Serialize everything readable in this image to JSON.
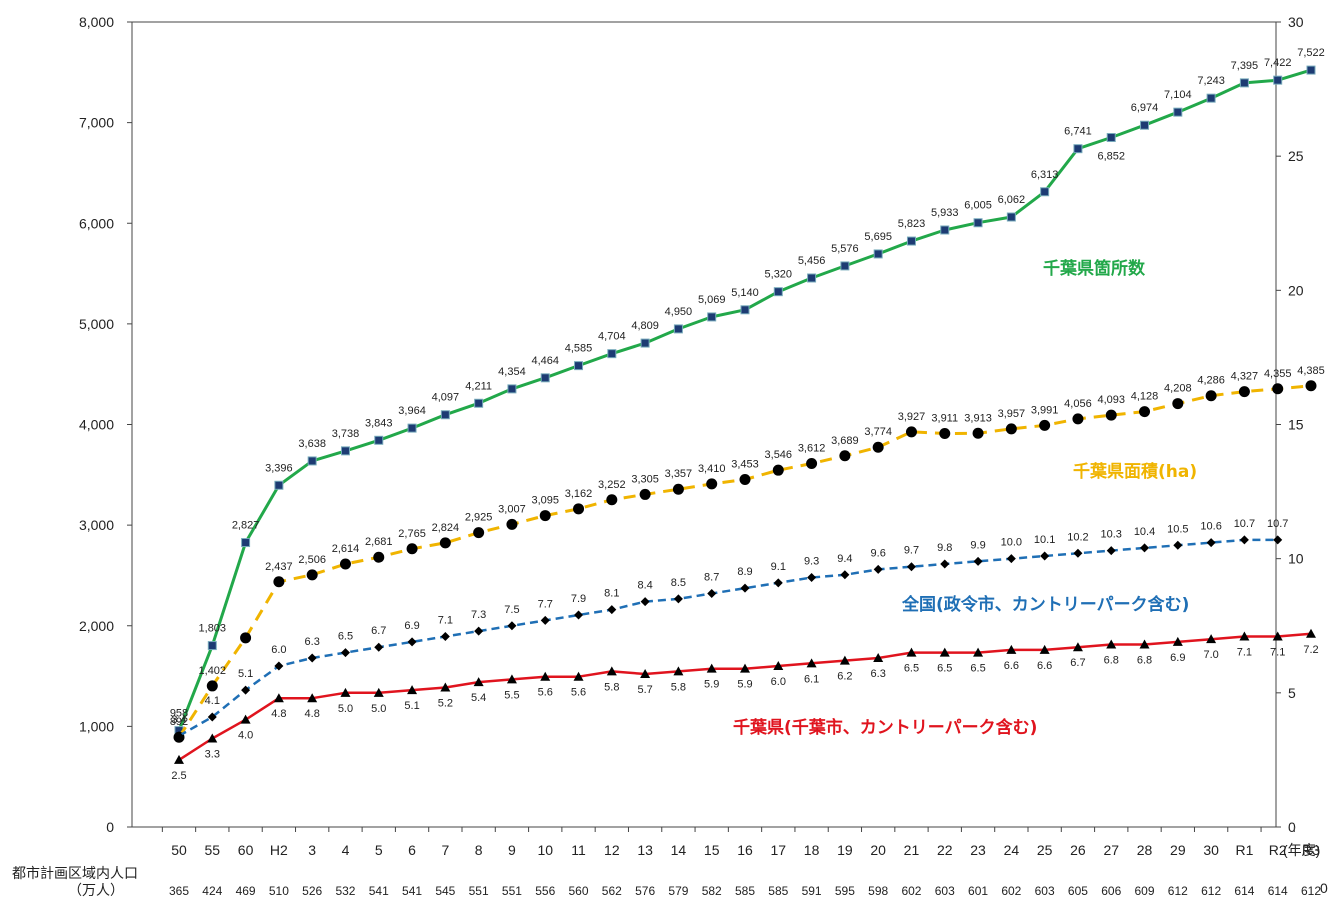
{
  "chart_data": {
    "type": "line",
    "x_tick_labels": [
      "50",
      "55",
      "60",
      "H2",
      "3",
      "4",
      "5",
      "6",
      "7",
      "8",
      "9",
      "10",
      "11",
      "12",
      "13",
      "14",
      "15",
      "16",
      "17",
      "18",
      "19",
      "20",
      "21",
      "22",
      "23",
      "24",
      "25",
      "26",
      "27",
      "28",
      "29",
      "30",
      "R1",
      "R2",
      "R3"
    ],
    "x_unit_label": "(年度)",
    "left_axis": {
      "ylim": [
        0,
        8000
      ],
      "ticks": [
        "0",
        "1,000",
        "2,000",
        "3,000",
        "4,000",
        "5,000",
        "6,000",
        "7,000",
        "8,000"
      ]
    },
    "right_axis": {
      "ylim": [
        0,
        30
      ],
      "ticks": [
        "0",
        "5",
        "10",
        "15",
        "20",
        "25",
        "30"
      ]
    },
    "population_row": {
      "label_line1": "都市計画区域内人口",
      "label_line2": "（万人）",
      "values": [
        "365",
        "424",
        "469",
        "510",
        "526",
        "532",
        "541",
        "541",
        "545",
        "551",
        "551",
        "556",
        "560",
        "562",
        "576",
        "579",
        "582",
        "585",
        "585",
        "591",
        "595",
        "598",
        "602",
        "603",
        "601",
        "602",
        "603",
        "605",
        "606",
        "609",
        "612",
        "612",
        "614",
        "614",
        "612"
      ],
      "right_edge_value": "0"
    },
    "series": [
      {
        "name": "千葉県箇所数",
        "axis": "left",
        "color": "#22a84a",
        "marker": "square",
        "values": [
          958,
          1803,
          2827,
          3396,
          3638,
          3738,
          3843,
          3964,
          4097,
          4211,
          4354,
          4464,
          4585,
          4704,
          4809,
          4950,
          5069,
          5140,
          5320,
          5456,
          5576,
          5695,
          5823,
          5933,
          6005,
          6062,
          6313,
          6741,
          6852,
          6974,
          7104,
          7243,
          7395,
          7422,
          7522
        ],
        "labels": [
          "958",
          "1,803",
          "2,827",
          "3,396",
          "3,638",
          "3,738",
          "3,843",
          "3,964",
          "4,097",
          "4,211",
          "4,354",
          "4,464",
          "4,585",
          "4,704",
          "4,809",
          "4,950",
          "5,069",
          "5,140",
          "5,320",
          "5,456",
          "5,576",
          "5,695",
          "5,823",
          "5,933",
          "6,005",
          "6,062",
          "6,313",
          "6,741",
          "6,852",
          "6,974",
          "7,104",
          "7,243",
          "7,395",
          "7,422",
          "7,522"
        ]
      },
      {
        "name": "千葉県面積(ha)",
        "axis": "left",
        "color": "#f0b400",
        "marker": "circle",
        "values": [
          892,
          1402,
          1880,
          2437,
          2506,
          2614,
          2681,
          2765,
          2824,
          2925,
          3007,
          3095,
          3162,
          3252,
          3305,
          3357,
          3410,
          3453,
          3546,
          3612,
          3689,
          3774,
          3927,
          3911,
          3913,
          3957,
          3991,
          4056,
          4093,
          4128,
          4208,
          4286,
          4327,
          4355,
          4385
        ],
        "labels": [
          "892",
          "1,402",
          "",
          "2,437",
          "2,506",
          "2,614",
          "2,681",
          "2,765",
          "2,824",
          "2,925",
          "3,007",
          "3,095",
          "3,162",
          "3,252",
          "3,305",
          "3,357",
          "3,410",
          "3,453",
          "3,546",
          "3,612",
          "3,689",
          "3,774",
          "3,927",
          "3,911",
          "3,913",
          "3,957",
          "3,991",
          "4,056",
          "4,093",
          "4,128",
          "4,208",
          "4,286",
          "4,327",
          "4,355",
          "4,385"
        ]
      },
      {
        "name": "全国(政令市、カントリーパーク含む)",
        "axis": "right",
        "color": "#1f6fb5",
        "marker": "diamond",
        "values": [
          3.4,
          4.1,
          5.1,
          6.0,
          6.3,
          6.5,
          6.7,
          6.9,
          7.1,
          7.3,
          7.5,
          7.7,
          7.9,
          8.1,
          8.4,
          8.5,
          8.7,
          8.9,
          9.1,
          9.3,
          9.4,
          9.6,
          9.7,
          9.8,
          9.9,
          10.0,
          10.1,
          10.2,
          10.3,
          10.4,
          10.5,
          10.6,
          10.7,
          10.7
        ],
        "labels": [
          "3.4",
          "4.1",
          "5.1",
          "6.0",
          "6.3",
          "6.5",
          "6.7",
          "6.9",
          "7.1",
          "7.3",
          "7.5",
          "7.7",
          "7.9",
          "8.1",
          "8.4",
          "8.5",
          "8.7",
          "8.9",
          "9.1",
          "9.3",
          "9.4",
          "9.6",
          "9.7",
          "9.8",
          "9.9",
          "10.0",
          "10.1",
          "10.2",
          "10.3",
          "10.4",
          "10.5",
          "10.6",
          "10.7",
          "10.7"
        ]
      },
      {
        "name": "千葉県(千葉市、カントリーパーク含む)",
        "axis": "right",
        "color": "#e0141e",
        "marker": "triangle",
        "values": [
          2.5,
          3.3,
          4.0,
          4.8,
          4.8,
          5.0,
          5.0,
          5.1,
          5.2,
          5.4,
          5.5,
          5.6,
          5.6,
          5.8,
          5.7,
          5.8,
          5.9,
          5.9,
          6.0,
          6.1,
          6.2,
          6.3,
          6.5,
          6.5,
          6.5,
          6.6,
          6.6,
          6.7,
          6.8,
          6.8,
          6.9,
          7.0,
          7.1,
          7.1,
          7.2
        ],
        "labels": [
          "2.5",
          "3.3",
          "4.0",
          "4.8",
          "4.8",
          "5.0",
          "5.0",
          "5.1",
          "5.2",
          "5.4",
          "5.5",
          "5.6",
          "5.6",
          "5.8",
          "5.7",
          "5.8",
          "5.9",
          "5.9",
          "6.0",
          "6.1",
          "6.2",
          "6.3",
          "6.5",
          "6.5",
          "6.5",
          "6.6",
          "6.6",
          "6.7",
          "6.8",
          "6.8",
          "6.9",
          "7.0",
          "7.1",
          "7.1",
          "7.2"
        ]
      }
    ]
  }
}
